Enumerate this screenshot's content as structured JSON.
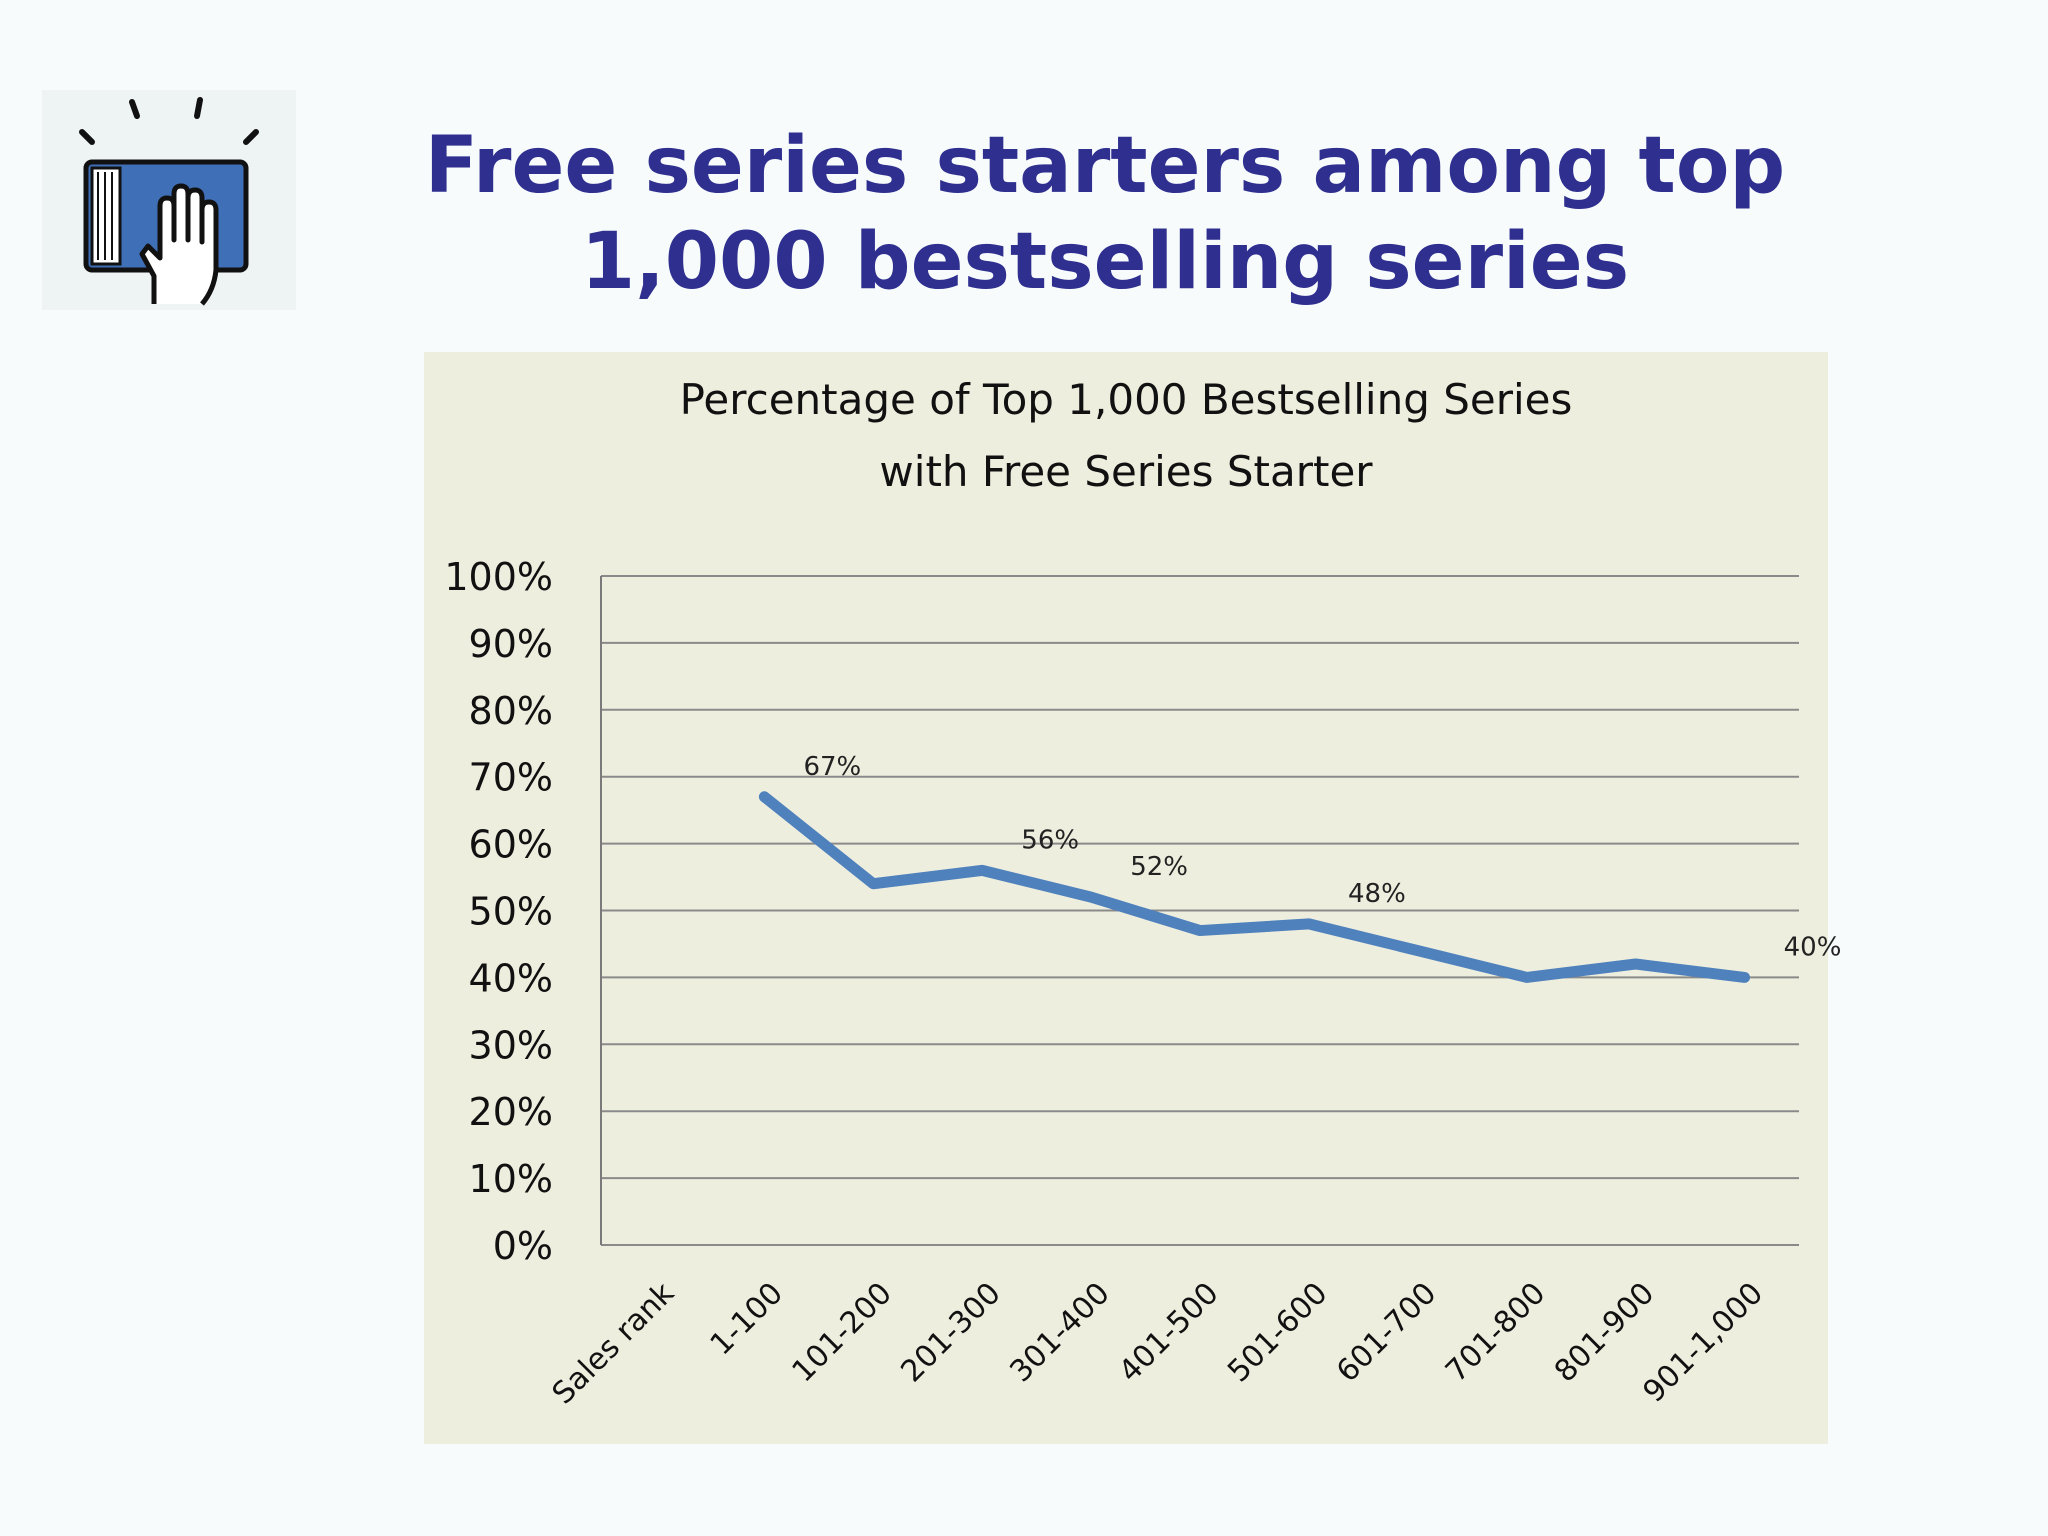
{
  "slide": {
    "title_line1": "Free series starters among top",
    "title_line2": "1,000 bestselling series",
    "logo_icon": "hand-on-book-icon",
    "colors": {
      "title": "#2e2f8f",
      "chart_background": "#eeeedf",
      "line": "#4f81bd",
      "logo_book": "#3f6fb6"
    }
  },
  "chart_data": {
    "type": "line",
    "title_line1": "Percentage of Top 1,000 Bestselling Series",
    "title_line2": "with Free Series Starter",
    "categories": [
      "Sales rank",
      "1-100",
      "101-200",
      "201-300",
      "301-400",
      "401-500",
      "501-600",
      "601-700",
      "701-800",
      "801-900",
      "901-1,000"
    ],
    "series": [
      {
        "values": [
          null,
          67,
          54,
          56,
          52,
          47,
          48,
          44,
          40,
          42,
          40
        ],
        "data_labels": [
          "",
          "67%",
          "",
          "56%",
          "52%",
          "",
          "48%",
          "",
          "",
          "",
          "40%"
        ]
      }
    ],
    "yticks": [
      "0%",
      "10%",
      "20%",
      "30%",
      "40%",
      "50%",
      "60%",
      "70%",
      "80%",
      "90%",
      "100%"
    ],
    "ylim": [
      0,
      100
    ],
    "grid": true,
    "legend": "none"
  }
}
